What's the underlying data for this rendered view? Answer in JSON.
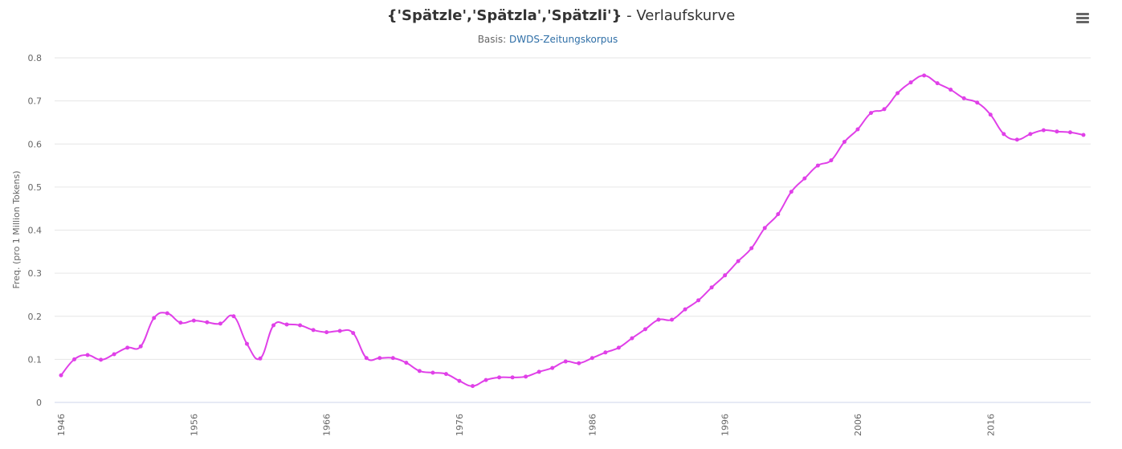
{
  "header": {
    "title_terms": "{'Spätzle','Spätzla','Spätzli'}",
    "title_suffix": " - Verlaufskurve",
    "subtitle_prefix": "Basis: ",
    "subtitle_link": "DWDS-Zeitungskorpus",
    "menu_icon": "hamburger-menu-icon"
  },
  "colors": {
    "series": "#e040e8",
    "grid": "#e6e6e6",
    "axis": "#ccd6eb",
    "link": "#2f6fa7"
  },
  "chart_data": {
    "type": "line",
    "title": "{'Spätzle','Spätzla','Spätzli'} - Verlaufskurve",
    "subtitle": "Basis: DWDS-Zeitungskorpus",
    "xlabel": "",
    "ylabel": "Freq. (pro 1 Million Tokens)",
    "ylim": [
      0,
      0.8
    ],
    "yticks": [
      0,
      0.1,
      0.2,
      0.3,
      0.4,
      0.5,
      0.6,
      0.7,
      0.8
    ],
    "xticks": [
      1946,
      1956,
      1966,
      1976,
      1986,
      1996,
      2006,
      2016
    ],
    "grid": true,
    "legend": null,
    "x": [
      1946,
      1947,
      1948,
      1949,
      1950,
      1951,
      1952,
      1953,
      1954,
      1955,
      1956,
      1957,
      1958,
      1959,
      1960,
      1961,
      1962,
      1963,
      1964,
      1965,
      1966,
      1967,
      1968,
      1969,
      1970,
      1971,
      1972,
      1973,
      1974,
      1975,
      1976,
      1977,
      1978,
      1979,
      1980,
      1981,
      1982,
      1983,
      1984,
      1985,
      1986,
      1987,
      1988,
      1989,
      1990,
      1991,
      1992,
      1993,
      1994,
      1995,
      1996,
      1997,
      1998,
      1999,
      2000,
      2001,
      2002,
      2003,
      2004,
      2005,
      2006,
      2007,
      2008,
      2009,
      2010,
      2011,
      2012,
      2013,
      2014,
      2015,
      2016,
      2017,
      2018,
      2019,
      2020,
      2021,
      2022,
      2023
    ],
    "series": [
      {
        "name": "{'Spätzle','Spätzla','Spätzli'}",
        "values": [
          0.063,
          0.1,
          0.11,
          0.099,
          0.112,
          0.127,
          0.13,
          0.196,
          0.207,
          0.185,
          0.19,
          0.186,
          0.183,
          0.2,
          0.136,
          0.102,
          0.179,
          0.181,
          0.179,
          0.168,
          0.163,
          0.166,
          0.161,
          0.103,
          0.103,
          0.103,
          0.092,
          0.073,
          0.069,
          0.066,
          0.05,
          0.038,
          0.052,
          0.058,
          0.058,
          0.06,
          0.071,
          0.08,
          0.095,
          0.091,
          0.103,
          0.116,
          0.127,
          0.149,
          0.17,
          0.192,
          0.192,
          0.216,
          0.237,
          0.267,
          0.295,
          0.328,
          0.358,
          0.405,
          0.437,
          0.489,
          0.52,
          0.55,
          0.562,
          0.605,
          0.634,
          0.672,
          0.681,
          0.718,
          0.743,
          0.759,
          0.741,
          0.726,
          0.706,
          0.696,
          0.668,
          0.623,
          0.61,
          0.623,
          0.632,
          0.629,
          0.627,
          0.621
        ]
      }
    ]
  }
}
